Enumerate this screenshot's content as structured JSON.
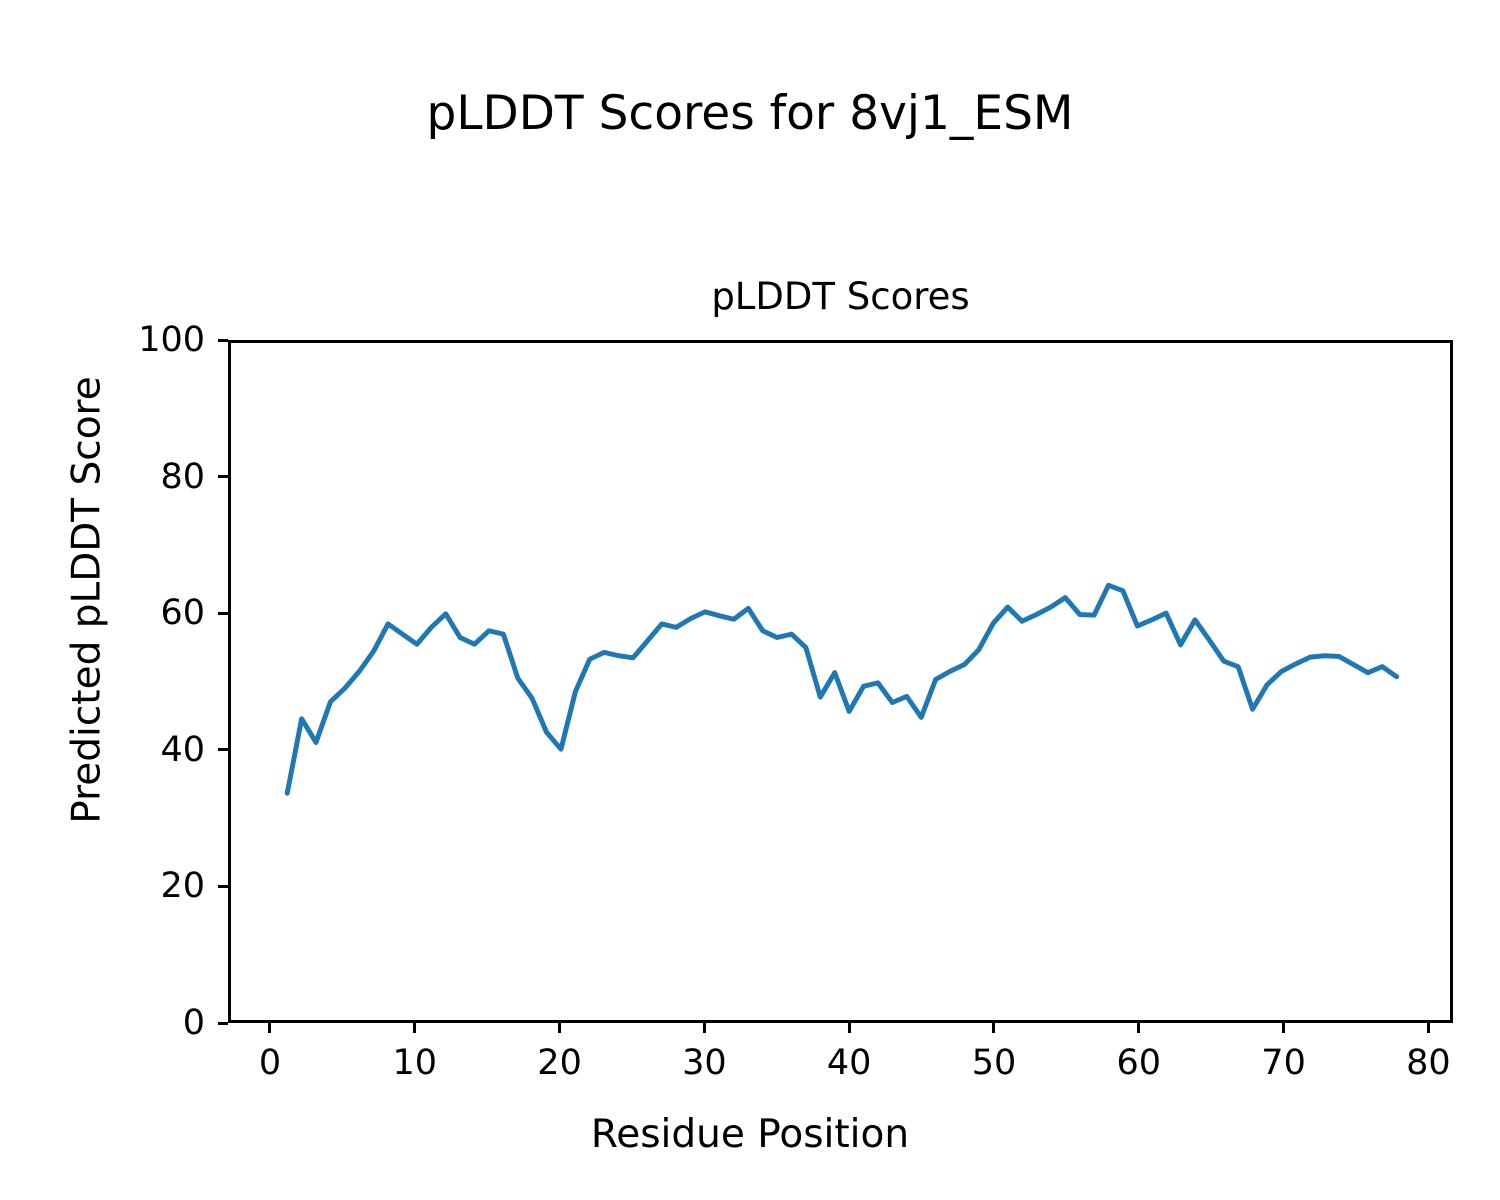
{
  "figure": {
    "suptitle": "pLDDT Scores for 8vj1_ESM"
  },
  "chart_data": {
    "type": "line",
    "title": "pLDDT Scores",
    "xlabel": "Residue Position",
    "ylabel": "Predicted pLDDT Score",
    "x_ticks": [
      0,
      10,
      20,
      30,
      40,
      50,
      60,
      70,
      80
    ],
    "y_ticks": [
      0,
      20,
      40,
      60,
      80,
      100
    ],
    "xlim": [
      -2.9,
      81.7
    ],
    "ylim": [
      0,
      100
    ],
    "grid": false,
    "legend": null,
    "line_color": "#1f77b4",
    "line_width": 5,
    "x": [
      1,
      2,
      3,
      4,
      5,
      6,
      7,
      8,
      9,
      10,
      11,
      12,
      13,
      14,
      15,
      16,
      17,
      18,
      19,
      20,
      21,
      22,
      23,
      24,
      25,
      26,
      27,
      28,
      29,
      30,
      31,
      32,
      33,
      34,
      35,
      36,
      37,
      38,
      39,
      40,
      41,
      42,
      43,
      44,
      45,
      46,
      47,
      48,
      49,
      50,
      51,
      52,
      53,
      54,
      55,
      56,
      57,
      58,
      59,
      60,
      61,
      62,
      63,
      64,
      65,
      66,
      67,
      68,
      69,
      70,
      71,
      72,
      73,
      74,
      75,
      76,
      77,
      78
    ],
    "y": [
      33.5,
      44.5,
      41,
      47,
      49,
      51.5,
      54.5,
      58.5,
      57,
      55.5,
      58,
      60,
      56.5,
      55.5,
      57.5,
      57,
      50.5,
      47.5,
      42.5,
      40,
      48.5,
      53.3,
      54.3,
      53.8,
      53.5,
      56,
      58.5,
      58,
      59.3,
      60.3,
      59.7,
      59.2,
      60.8,
      57.5,
      56.5,
      57,
      55,
      47.7,
      51.3,
      45.6,
      49.3,
      49.8,
      46.9,
      47.8,
      44.7,
      50.3,
      51.5,
      52.5,
      54.7,
      58.6,
      61,
      58.9,
      59.9,
      61,
      62.4,
      59.9,
      59.8,
      64.2,
      63.4,
      58.2,
      59.1,
      60.1,
      55.4,
      59.1,
      56.1,
      53,
      52.2,
      45.9,
      49.5,
      51.5,
      52.6,
      53.6,
      53.8,
      53.7,
      52.5,
      51.3,
      52.2,
      50.7
    ]
  }
}
